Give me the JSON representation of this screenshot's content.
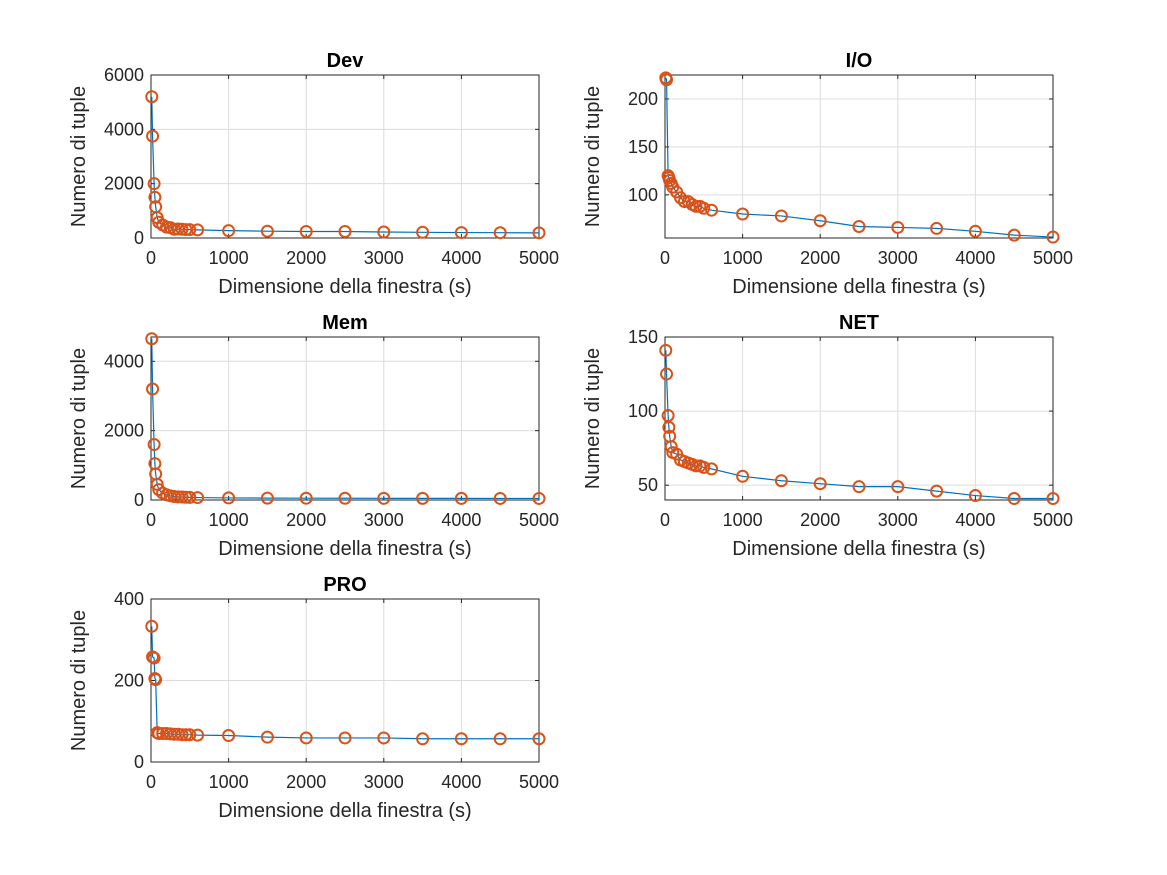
{
  "colors": {
    "line": "#0072BD",
    "marker": "#D95319",
    "grid": "#dcdcdc",
    "axis": "#262626"
  },
  "chart_data": [
    {
      "type": "line",
      "title": "Dev",
      "xlabel": "Dimensione della finestra (s)",
      "ylabel": "Numero di tuple",
      "xlim": [
        0,
        5000
      ],
      "ylim": [
        0,
        6000
      ],
      "xticks": [
        0,
        1000,
        2000,
        3000,
        4000,
        5000
      ],
      "yticks": [
        0,
        2000,
        4000,
        6000
      ],
      "grid": true,
      "marker": "circle",
      "series": [
        {
          "x": [
            10,
            20,
            40,
            50,
            60,
            80,
            100,
            150,
            200,
            250,
            300,
            350,
            400,
            450,
            500,
            600,
            1000,
            1500,
            2000,
            2500,
            3000,
            3500,
            4000,
            4500,
            5000
          ],
          "y": [
            5200,
            3750,
            2000,
            1500,
            1150,
            750,
            580,
            480,
            400,
            380,
            320,
            330,
            320,
            310,
            310,
            300,
            270,
            250,
            240,
            240,
            220,
            210,
            200,
            195,
            190
          ]
        }
      ]
    },
    {
      "type": "line",
      "title": "I/O",
      "xlabel": "Dimensione della finestra (s)",
      "ylabel": "Numero di tuple",
      "xlim": [
        0,
        5000
      ],
      "ylim": [
        55,
        225
      ],
      "xticks": [
        0,
        1000,
        2000,
        3000,
        4000,
        5000
      ],
      "yticks": [
        100,
        150,
        200
      ],
      "grid": true,
      "marker": "circle",
      "series": [
        {
          "x": [
            10,
            20,
            40,
            50,
            60,
            80,
            100,
            150,
            200,
            250,
            300,
            350,
            400,
            450,
            500,
            600,
            1000,
            1500,
            2000,
            2500,
            3000,
            3500,
            4000,
            4500,
            5000
          ],
          "y": [
            222,
            220,
            120,
            118,
            115,
            112,
            108,
            103,
            97,
            93,
            93,
            90,
            88,
            88,
            86,
            84,
            80,
            78,
            73,
            67,
            66,
            65,
            62,
            58,
            56
          ]
        }
      ]
    },
    {
      "type": "line",
      "title": "Mem",
      "xlabel": "Dimensione della finestra (s)",
      "ylabel": "Numero di tuple",
      "xlim": [
        0,
        5000
      ],
      "ylim": [
        0,
        4700
      ],
      "xticks": [
        0,
        1000,
        2000,
        3000,
        4000,
        5000
      ],
      "yticks": [
        0,
        2000,
        4000
      ],
      "grid": true,
      "marker": "circle",
      "series": [
        {
          "x": [
            10,
            20,
            40,
            50,
            60,
            80,
            100,
            150,
            200,
            250,
            300,
            350,
            400,
            450,
            500,
            600,
            1000,
            1500,
            2000,
            2500,
            3000,
            3500,
            4000,
            4500,
            5000
          ],
          "y": [
            4650,
            3200,
            1600,
            1050,
            750,
            450,
            300,
            200,
            150,
            120,
            100,
            90,
            85,
            80,
            75,
            70,
            60,
            55,
            52,
            50,
            48,
            47,
            46,
            45,
            45
          ]
        }
      ]
    },
    {
      "type": "line",
      "title": "NET",
      "xlabel": "Dimensione della finestra (s)",
      "ylabel": "Numero di tuple",
      "xlim": [
        0,
        5000
      ],
      "ylim": [
        40,
        150
      ],
      "xticks": [
        0,
        1000,
        2000,
        3000,
        4000,
        5000
      ],
      "yticks": [
        50,
        100,
        150
      ],
      "grid": true,
      "marker": "circle",
      "series": [
        {
          "x": [
            10,
            20,
            40,
            50,
            60,
            80,
            100,
            150,
            200,
            250,
            300,
            350,
            400,
            450,
            500,
            600,
            1000,
            1500,
            2000,
            2500,
            3000,
            3500,
            4000,
            4500,
            5000
          ],
          "y": [
            141,
            125,
            97,
            89,
            83,
            76,
            72,
            71,
            67,
            66,
            65,
            64,
            63,
            63,
            62,
            61,
            56,
            53,
            51,
            49,
            49,
            46,
            43,
            41,
            41
          ]
        }
      ]
    },
    {
      "type": "line",
      "title": "PRO",
      "xlabel": "Dimensione della finestra (s)",
      "ylabel": "Numero di tuple",
      "xlim": [
        0,
        5000
      ],
      "ylim": [
        0,
        400
      ],
      "xticks": [
        0,
        1000,
        2000,
        3000,
        4000,
        5000
      ],
      "yticks": [
        0,
        200,
        400
      ],
      "grid": true,
      "marker": "circle",
      "series": [
        {
          "x": [
            10,
            20,
            40,
            50,
            60,
            80,
            100,
            150,
            200,
            250,
            300,
            350,
            400,
            450,
            500,
            600,
            1000,
            1500,
            2000,
            2500,
            3000,
            3500,
            4000,
            4500,
            5000
          ],
          "y": [
            333,
            258,
            255,
            205,
            202,
            72,
            70,
            70,
            70,
            69,
            68,
            68,
            67,
            67,
            67,
            66,
            65,
            61,
            59,
            59,
            59,
            57,
            57,
            57,
            57
          ]
        }
      ]
    }
  ]
}
